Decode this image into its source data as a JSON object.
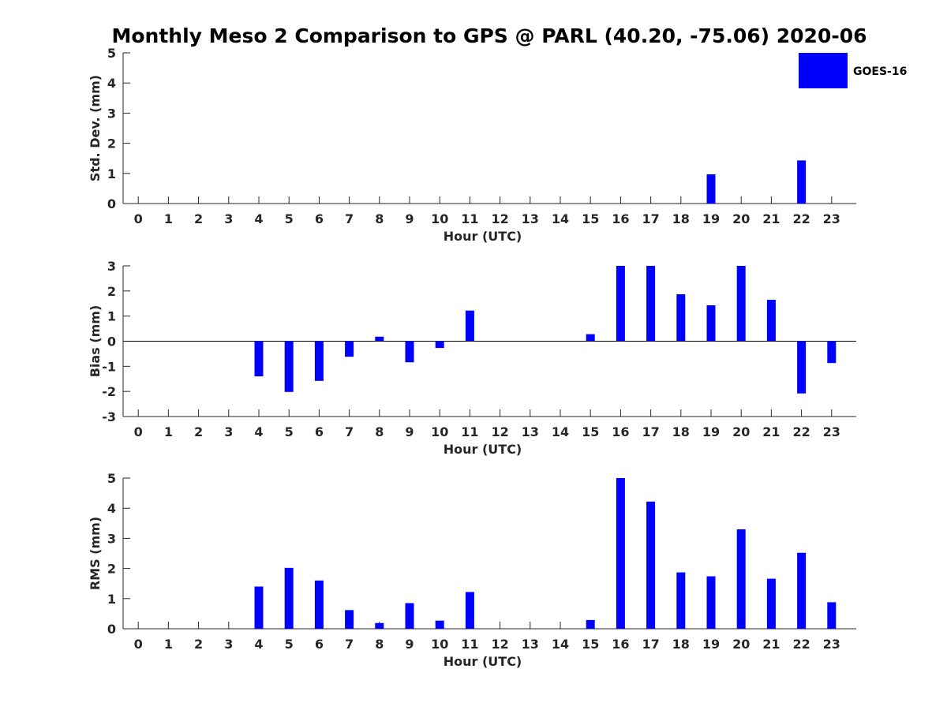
{
  "title": "Monthly Meso 2 Comparison to GPS @ PARL (40.20, -75.06) 2020-06",
  "colors": {
    "bar": "#0000ff",
    "axis": "#262626"
  },
  "legend": {
    "label": "GOES-16",
    "placement": "top-right"
  },
  "chart_data": [
    {
      "type": "bar",
      "title": "",
      "xlabel": "Hour (UTC)",
      "ylabel": "Std. Dev. (mm)",
      "ylim": [
        0,
        5
      ],
      "yticks": [
        0,
        1,
        2,
        3,
        4,
        5
      ],
      "categories": [
        "0",
        "1",
        "2",
        "3",
        "4",
        "5",
        "6",
        "7",
        "8",
        "9",
        "10",
        "11",
        "12",
        "13",
        "14",
        "15",
        "16",
        "17",
        "18",
        "19",
        "20",
        "21",
        "22",
        "23"
      ],
      "series": [
        {
          "name": "GOES-16",
          "values": [
            null,
            null,
            null,
            null,
            null,
            null,
            null,
            null,
            null,
            null,
            null,
            null,
            null,
            null,
            null,
            null,
            null,
            null,
            null,
            0.97,
            null,
            null,
            1.43,
            null
          ]
        }
      ]
    },
    {
      "type": "bar",
      "title": "",
      "xlabel": "Hour (UTC)",
      "ylabel": "Bias (mm)",
      "ylim": [
        -3,
        3
      ],
      "yticks": [
        -3,
        -2,
        -1,
        0,
        1,
        2,
        3
      ],
      "categories": [
        "0",
        "1",
        "2",
        "3",
        "4",
        "5",
        "6",
        "7",
        "8",
        "9",
        "10",
        "11",
        "12",
        "13",
        "14",
        "15",
        "16",
        "17",
        "18",
        "19",
        "20",
        "21",
        "22",
        "23"
      ],
      "series": [
        {
          "name": "GOES-16",
          "values": [
            null,
            null,
            null,
            null,
            -1.4,
            -2.02,
            -1.58,
            -0.62,
            0.18,
            -0.84,
            -0.27,
            1.22,
            null,
            null,
            null,
            0.28,
            3.0,
            3.0,
            1.87,
            1.43,
            3.0,
            1.65,
            -2.08,
            -0.87
          ]
        }
      ]
    },
    {
      "type": "bar",
      "title": "",
      "xlabel": "Hour (UTC)",
      "ylabel": "RMS (mm)",
      "ylim": [
        0,
        5
      ],
      "yticks": [
        0,
        1,
        2,
        3,
        4,
        5
      ],
      "categories": [
        "0",
        "1",
        "2",
        "3",
        "4",
        "5",
        "6",
        "7",
        "8",
        "9",
        "10",
        "11",
        "12",
        "13",
        "14",
        "15",
        "16",
        "17",
        "18",
        "19",
        "20",
        "21",
        "22",
        "23"
      ],
      "series": [
        {
          "name": "GOES-16",
          "values": [
            null,
            null,
            null,
            null,
            1.4,
            2.02,
            1.6,
            0.62,
            0.19,
            0.85,
            0.27,
            1.22,
            null,
            null,
            null,
            0.29,
            5.0,
            4.22,
            1.87,
            1.74,
            3.3,
            1.66,
            2.52,
            0.88
          ]
        }
      ]
    }
  ]
}
